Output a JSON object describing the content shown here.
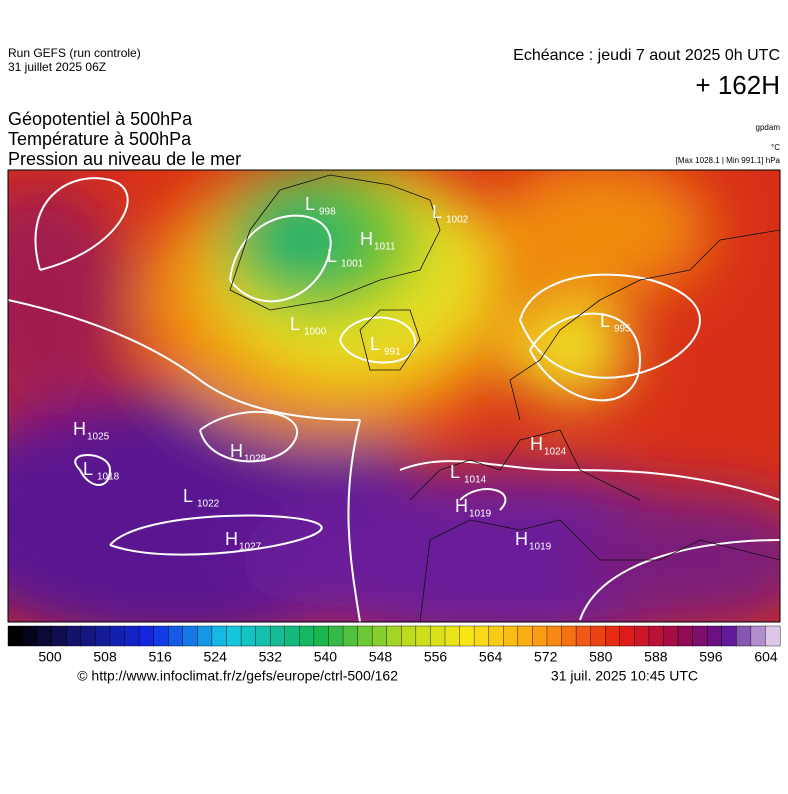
{
  "header": {
    "run_title": "Run GEFS (run controle)",
    "run_date": "31 juillet 2025 06Z",
    "echeance": "Echéance : jeudi 7 aout 2025 0h UTC",
    "lead_time": "+ 162H",
    "fields": [
      "Géopotentiel à 500hPa",
      "Température à 500hPa",
      "Pression au niveau de le mer"
    ],
    "unit_geopotential": "gpdam",
    "unit_temperature": "°C",
    "pressure_range": "[Max 1028.1 | Min 991.1] hPa"
  },
  "map": {
    "centers": [
      {
        "kind": "H",
        "pressure": 1025
      },
      {
        "kind": "L",
        "pressure": 1018
      },
      {
        "kind": "H",
        "pressure": 1028
      },
      {
        "kind": "L",
        "pressure": 1022
      },
      {
        "kind": "H",
        "pressure": 1027
      },
      {
        "kind": "L",
        "pressure": 998
      },
      {
        "kind": "H",
        "pressure": 1011
      },
      {
        "kind": "L",
        "pressure": 1001
      },
      {
        "kind": "L",
        "pressure": 1002
      },
      {
        "kind": "L",
        "pressure": 1000
      },
      {
        "kind": "L",
        "pressure": 991
      },
      {
        "kind": "L",
        "pressure": 995
      },
      {
        "kind": "H",
        "pressure": 1024
      },
      {
        "kind": "L",
        "pressure": 1014
      },
      {
        "kind": "H",
        "pressure": 1019
      },
      {
        "kind": "H",
        "pressure": 1019
      }
    ]
  },
  "colorbar": {
    "labels": [
      500,
      508,
      516,
      524,
      532,
      540,
      548,
      556,
      564,
      572,
      580,
      588,
      596,
      604
    ]
  },
  "footer": {
    "source": "© http://www.infoclimat.fr/z/gefs/europe/ctrl-500/162",
    "issued": "31 juil. 2025 10:45 UTC"
  }
}
